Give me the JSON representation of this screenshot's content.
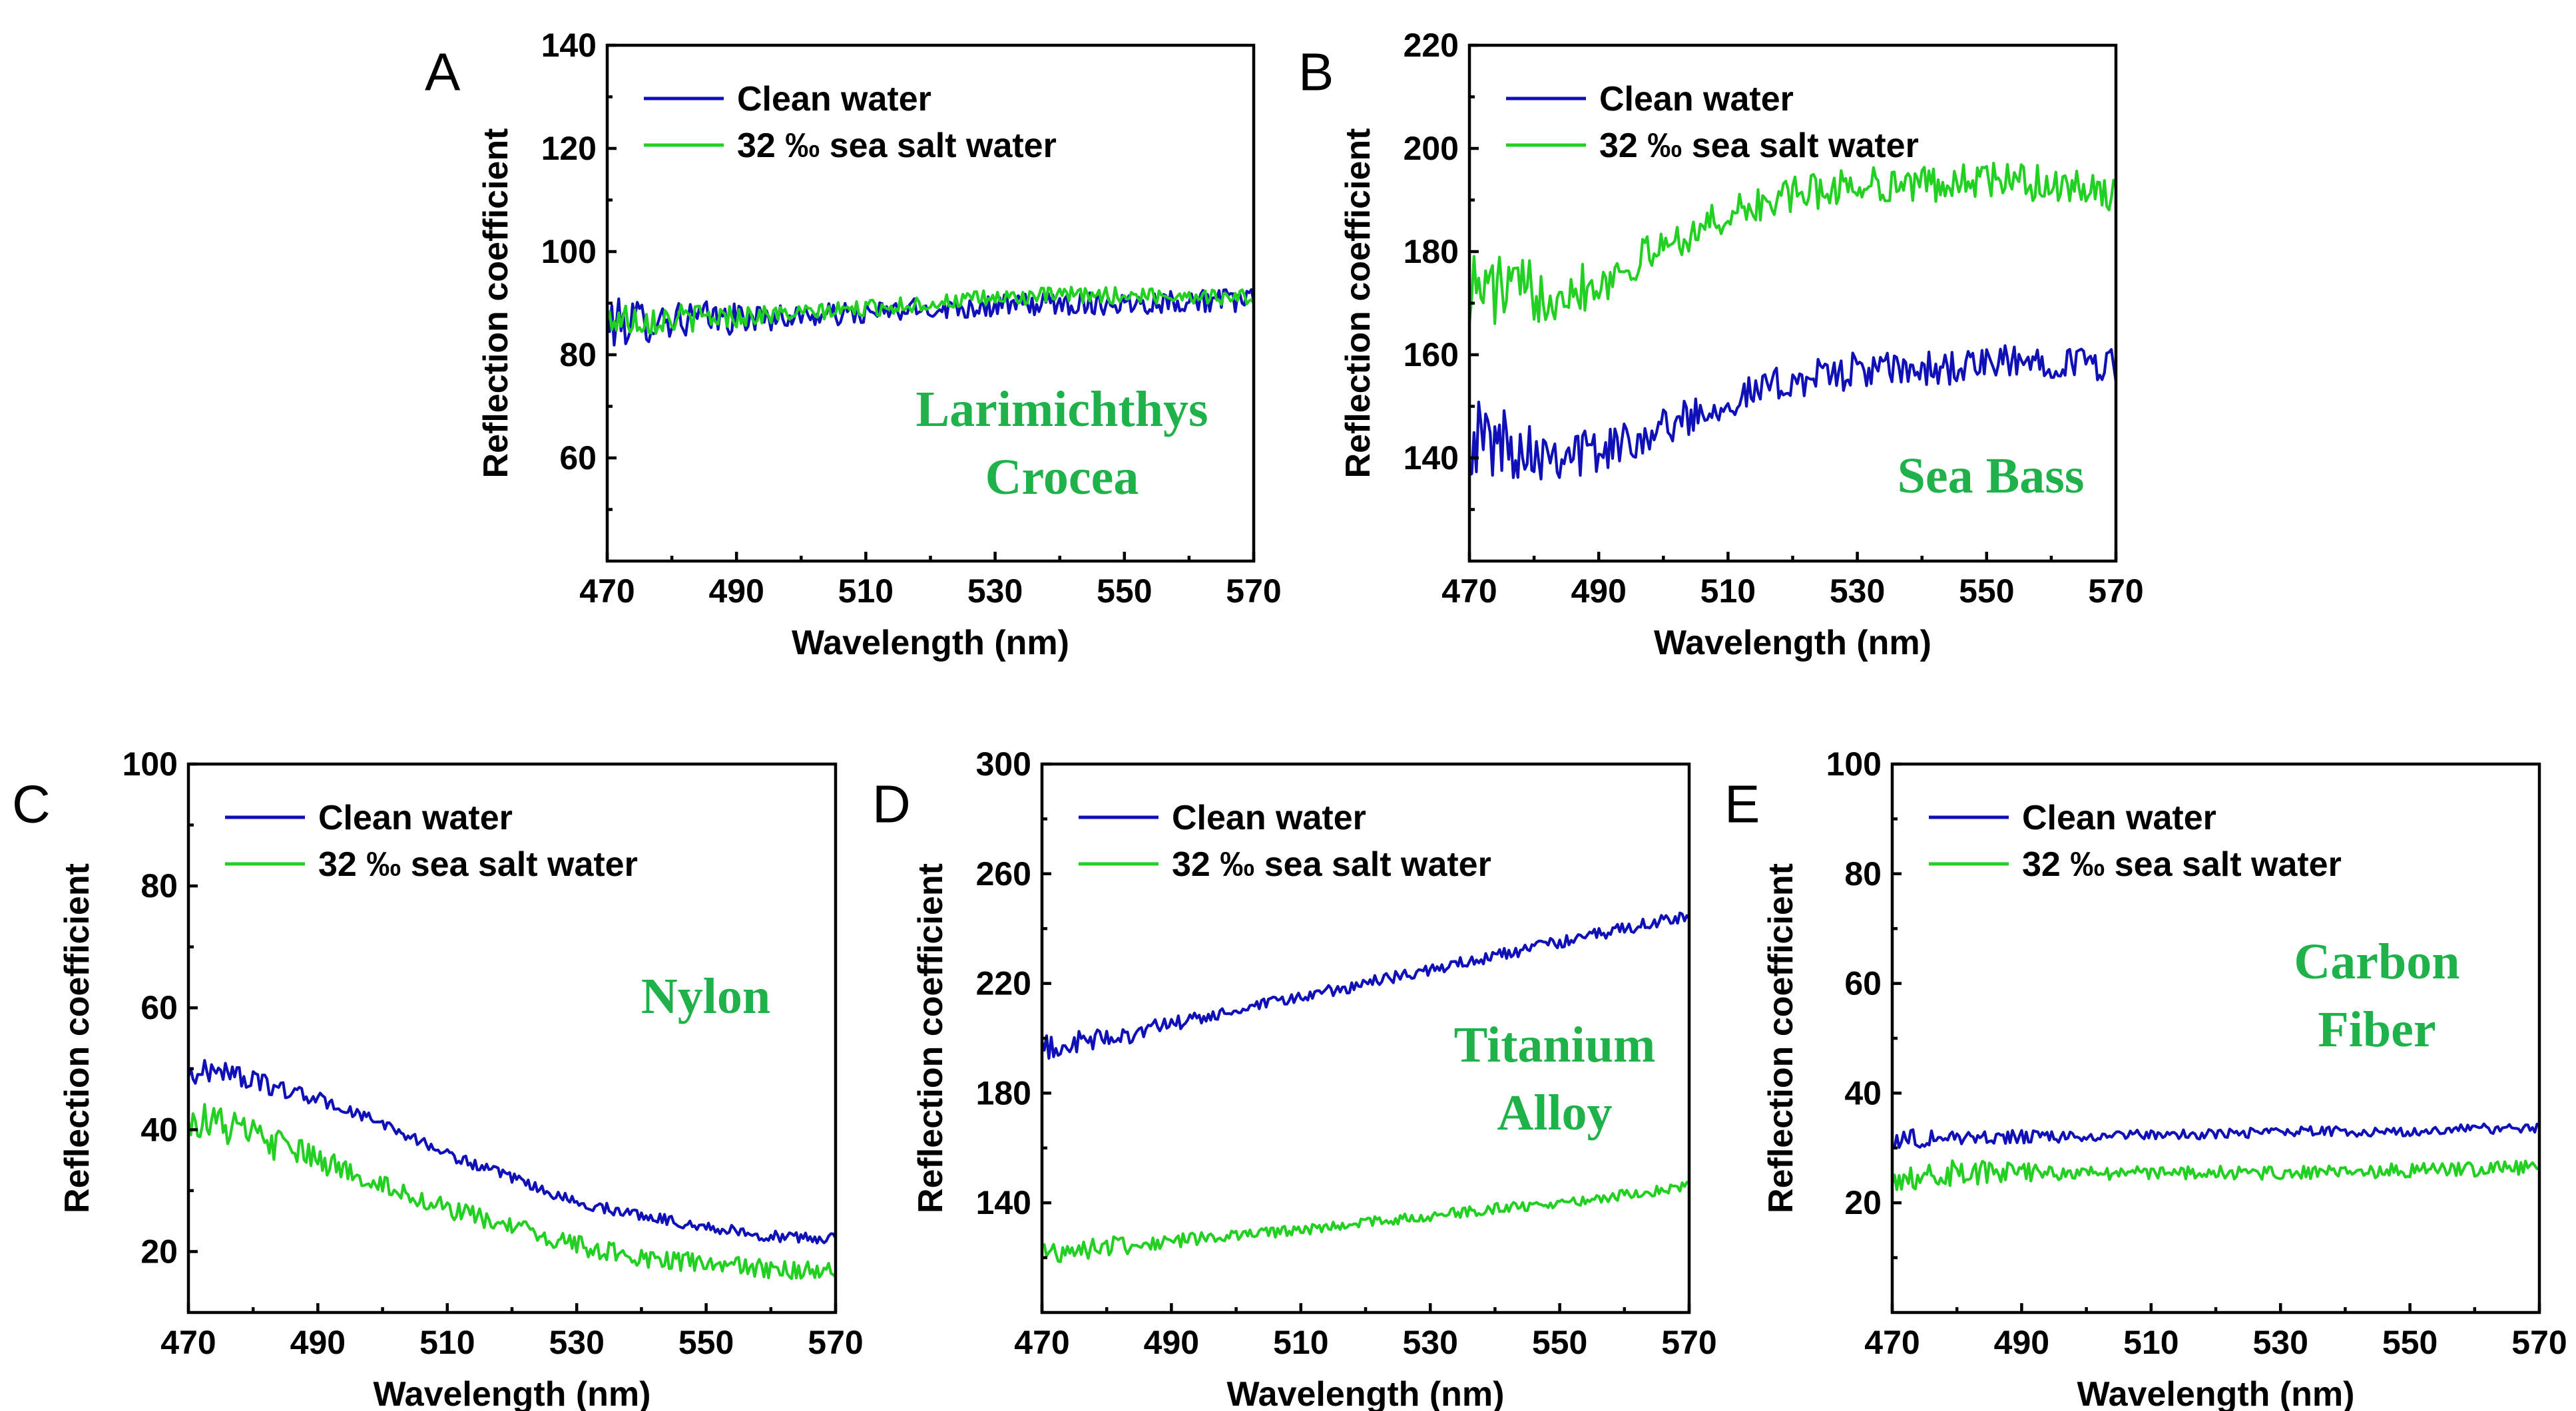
{
  "colors": {
    "clean": "#1010b8",
    "salt": "#22d022",
    "annotation": "#1fb24a",
    "axis": "#000000"
  },
  "chart_data": [
    {
      "panel": "A",
      "type": "line",
      "title": "",
      "xlabel": "Wavelength (nm)",
      "ylabel": "Reflection coefficient",
      "xlim": [
        470,
        570
      ],
      "ylim": [
        40,
        140
      ],
      "xticks": [
        470,
        490,
        510,
        530,
        550,
        570
      ],
      "yticks": [
        60,
        80,
        100,
        120,
        140
      ],
      "annotation": [
        "Larimichthys",
        "Crocea"
      ],
      "legend": "top-left",
      "series": [
        {
          "name": "Clean water",
          "color": "#1010b8",
          "x": [
            470,
            480,
            490,
            500,
            510,
            520,
            530,
            540,
            550,
            560,
            570
          ],
          "values": [
            86,
            87,
            87,
            87.5,
            88,
            89,
            89.5,
            90,
            90,
            90.5,
            90.5
          ],
          "noise": 2.2
        },
        {
          "name": "32 ‰ sea salt water",
          "color": "#22d022",
          "x": [
            470,
            480,
            490,
            500,
            510,
            520,
            530,
            540,
            550,
            560,
            570
          ],
          "values": [
            87,
            87,
            87.5,
            88,
            89,
            90,
            91,
            91.5,
            91.5,
            91.5,
            91
          ],
          "noise": 1.6
        }
      ]
    },
    {
      "panel": "B",
      "type": "line",
      "title": "",
      "xlabel": "Wavelength (nm)",
      "ylabel": "Reflection coefficient",
      "xlim": [
        470,
        570
      ],
      "ylim": [
        120,
        220
      ],
      "xticks": [
        470,
        490,
        510,
        530,
        550,
        570
      ],
      "yticks": [
        140,
        160,
        180,
        200,
        220
      ],
      "annotation": [
        "Sea Bass"
      ],
      "legend": "top-left",
      "series": [
        {
          "name": "Clean water",
          "color": "#1010b8",
          "x": [
            470,
            480,
            490,
            500,
            510,
            520,
            530,
            540,
            550,
            560,
            570
          ],
          "values": [
            144,
            142,
            141,
            146,
            151,
            155,
            157,
            157,
            158,
            159,
            158
          ],
          "noise": 3.5
        },
        {
          "name": "32 ‰ sea salt water",
          "color": "#22d022",
          "x": [
            470,
            480,
            490,
            500,
            510,
            520,
            530,
            540,
            550,
            560,
            570
          ],
          "values": [
            173,
            172,
            174,
            181,
            187,
            191,
            193,
            193,
            194,
            193,
            191
          ],
          "noise": 3.5
        }
      ]
    },
    {
      "panel": "C",
      "type": "line",
      "title": "",
      "xlabel": "Wavelength (nm)",
      "ylabel": "Reflection coefficient",
      "xlim": [
        470,
        570
      ],
      "ylim": [
        10,
        100
      ],
      "xticks": [
        470,
        490,
        510,
        530,
        550,
        570
      ],
      "yticks": [
        20,
        40,
        60,
        80,
        100
      ],
      "annotation": [
        "Nylon"
      ],
      "legend": "top-left",
      "series": [
        {
          "name": "Clean water",
          "color": "#1010b8",
          "x": [
            470,
            475,
            480,
            490,
            500,
            510,
            520,
            530,
            540,
            550,
            560,
            570
          ],
          "values": [
            49,
            50,
            48,
            45,
            41,
            36,
            32,
            28,
            26,
            24,
            22.5,
            22
          ],
          "noise": 0.9
        },
        {
          "name": "32 ‰ sea salt water",
          "color": "#22d022",
          "x": [
            470,
            475,
            480,
            490,
            500,
            510,
            520,
            530,
            540,
            550,
            560,
            570
          ],
          "values": [
            42,
            41,
            39,
            35,
            31,
            27,
            24,
            21,
            19,
            18,
            17,
            16.5
          ],
          "noise": 1.6
        }
      ]
    },
    {
      "panel": "D",
      "type": "line",
      "title": "",
      "xlabel": "Wavelength (nm)",
      "ylabel": "Reflection coefficient",
      "xlim": [
        470,
        570
      ],
      "ylim": [
        100,
        300
      ],
      "xticks": [
        470,
        490,
        510,
        530,
        550,
        570
      ],
      "yticks": [
        140,
        180,
        220,
        260,
        300
      ],
      "annotation": [
        "Titanium",
        "Alloy"
      ],
      "legend": "top-left",
      "series": [
        {
          "name": "Clean water",
          "color": "#1010b8",
          "x": [
            470,
            480,
            490,
            500,
            510,
            520,
            530,
            540,
            550,
            560,
            570
          ],
          "values": [
            196,
            200,
            205,
            210,
            215,
            220,
            225,
            230,
            235,
            240,
            245
          ],
          "noise": 2.2
        },
        {
          "name": "32 ‰ sea salt water",
          "color": "#22d022",
          "x": [
            470,
            480,
            490,
            500,
            510,
            520,
            530,
            540,
            550,
            560,
            570
          ],
          "values": [
            122,
            124,
            126,
            128,
            130,
            133,
            135,
            138,
            140,
            143,
            146
          ],
          "noise": 2.0
        }
      ]
    },
    {
      "panel": "E",
      "type": "line",
      "title": "",
      "xlabel": "Wavelength (nm)",
      "ylabel": "Reflection coefficient",
      "xlim": [
        470,
        570
      ],
      "ylim": [
        0,
        100
      ],
      "xticks": [
        470,
        490,
        510,
        530,
        550,
        570
      ],
      "yticks": [
        20,
        40,
        60,
        80,
        100
      ],
      "annotation": [
        "Carbon",
        "Fiber"
      ],
      "legend": "top-left",
      "series": [
        {
          "name": "Clean water",
          "color": "#1010b8",
          "x": [
            470,
            480,
            490,
            500,
            510,
            520,
            530,
            540,
            550,
            560,
            570
          ],
          "values": [
            31.5,
            32,
            32,
            32,
            32.5,
            32.5,
            33,
            33,
            33,
            33.5,
            33.5
          ],
          "noise": 0.9
        },
        {
          "name": "32 ‰ sea salt water",
          "color": "#22d022",
          "x": [
            470,
            480,
            490,
            500,
            510,
            520,
            530,
            540,
            550,
            560,
            570
          ],
          "values": [
            25,
            25.5,
            25.5,
            25.5,
            25.5,
            25.5,
            25.5,
            25.5,
            26,
            26,
            26.5
          ],
          "noise": 1.3
        }
      ]
    }
  ]
}
